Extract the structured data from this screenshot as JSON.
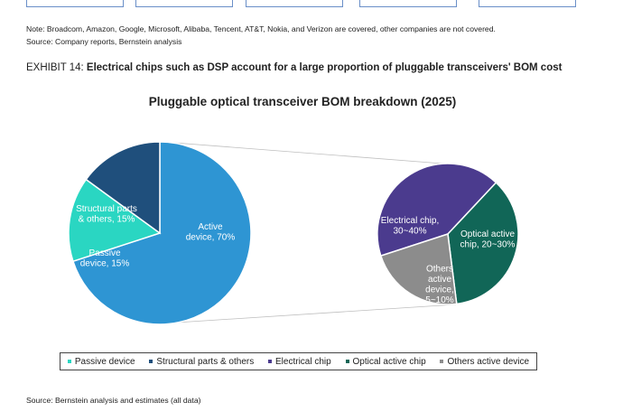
{
  "note": {
    "text": "Note: Broadcom, Amazon, Google, Microsoft, Alibaba, Tencent, AT&T, Nokia, and Verizon are covered, other companies are not covered.",
    "source": "Source: Company reports, Bernstein analysis"
  },
  "exhibit": {
    "prefix": "EXHIBIT 14: ",
    "title": "Electrical chips such as DSP account for a large proportion of pluggable transceivers' BOM cost"
  },
  "chart_data": {
    "type": "pie",
    "title": "Pluggable optical transceiver BOM breakdown (2025)",
    "main_pie": [
      {
        "name": "Active device",
        "label": "Active\ndevice, 70%",
        "value": 70,
        "color": "#2e95d3"
      },
      {
        "name": "Passive device",
        "label": "Passive\ndevice, 15%",
        "value": 15,
        "color": "#2ad6c2"
      },
      {
        "name": "Structural parts & others",
        "label": "Structural parts\n& others, 15%",
        "value": 15,
        "color": "#1f4f7c"
      }
    ],
    "breakdown_pie": [
      {
        "name": "Electrical chip",
        "label": "Electrical chip,\n30~40%",
        "value": 42,
        "color": "#4b3b8e"
      },
      {
        "name": "Optical active chip",
        "label": "Optical active\nchip, 20~30%",
        "value": 36,
        "color": "#116657"
      },
      {
        "name": "Others active device",
        "label": "Others\nactive\ndevice,\n5~10%",
        "value": 22,
        "color": "#8c8c8c"
      }
    ],
    "legend": [
      {
        "label": "Passive device",
        "color": "#2ad6c2"
      },
      {
        "label": "Structural parts & others",
        "color": "#1f4f7c"
      },
      {
        "label": "Electrical chip",
        "color": "#4b3b8e"
      },
      {
        "label": "Optical active chip",
        "color": "#116657"
      },
      {
        "label": "Others active device",
        "color": "#8c8c8c"
      }
    ],
    "legend_position": "bottom"
  },
  "footer": {
    "source": "Source: Bernstein analysis and estimates (all data)"
  }
}
